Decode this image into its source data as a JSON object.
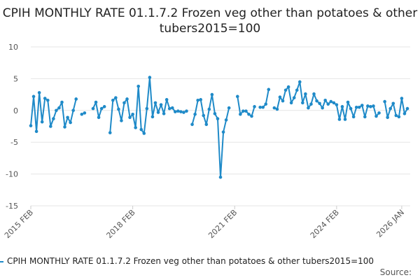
{
  "page": {
    "title": "CPIH MONTHLY RATE 01.1.7.2 Frozen veg other than potatoes & other tubers2015=100",
    "source_label": "Source:"
  },
  "colors": {
    "series": "#1f8ac8",
    "grid": "#e6e6e6",
    "axis_text": "#555555"
  },
  "chart_data": {
    "type": "line",
    "title": "CPIH MONTHLY RATE 01.1.7.2 Frozen veg other than potatoes & other tubers2015=100",
    "xlabel": "",
    "ylabel": "",
    "ylim": [
      -15,
      10
    ],
    "yticks": [
      10,
      5,
      0,
      -5,
      -10,
      -15
    ],
    "xticks": [
      {
        "label": "2015 FEB",
        "index": 0
      },
      {
        "label": "2018 FEB",
        "index": 36
      },
      {
        "label": "2021 FEB",
        "index": 72
      },
      {
        "label": "2024 FEB",
        "index": 108
      },
      {
        "label": "2026 JAN",
        "index": 131
      }
    ],
    "grid": true,
    "legend_position": "bottom",
    "series": [
      {
        "name": "CPIH MONTHLY RATE 01.1.7.2 Frozen veg other than potatoes & other tubers2015=100",
        "start": "2015 FEB",
        "values": [
          -2.4,
          2.2,
          -3.3,
          2.8,
          -1.8,
          1.9,
          1.6,
          -2.5,
          -1.3,
          0.0,
          0.4,
          1.3,
          -2.6,
          -1.1,
          -1.9,
          0.0,
          1.8,
          null,
          -0.6,
          -0.4,
          null,
          null,
          0.3,
          1.3,
          -1.1,
          0.3,
          0.6,
          null,
          -3.5,
          1.6,
          2.0,
          0.2,
          -1.6,
          1.2,
          1.8,
          -1.1,
          -0.6,
          -2.7,
          3.8,
          -3.0,
          -3.6,
          0.3,
          5.2,
          -1.0,
          1.2,
          -0.3,
          0.9,
          -0.5,
          1.7,
          0.3,
          0.4,
          -0.2,
          -0.1,
          -0.2,
          -0.3,
          -0.1,
          null,
          -2.2,
          -0.6,
          1.6,
          1.7,
          -0.8,
          -2.2,
          0.2,
          2.5,
          -0.5,
          -1.3,
          -10.5,
          -3.4,
          -1.5,
          0.4,
          null,
          null,
          2.2,
          -0.6,
          -0.1,
          -0.1,
          -0.6,
          -0.9,
          0.6,
          null,
          0.5,
          0.5,
          1.0,
          3.3,
          null,
          0.4,
          0.2,
          2.1,
          1.5,
          3.2,
          3.7,
          1.2,
          2.0,
          3.2,
          4.5,
          1.2,
          2.6,
          0.4,
          1.0,
          2.6,
          1.5,
          1.1,
          0.4,
          1.6,
          1.0,
          1.4,
          1.2,
          0.9,
          -1.4,
          0.6,
          -1.4,
          1.3,
          0.3,
          -1.0,
          0.5,
          0.5,
          0.8,
          -1.0,
          0.7,
          0.6,
          0.7,
          -0.9,
          -0.4,
          null,
          1.4,
          -1.1,
          0.3,
          1.1,
          -0.8,
          -1.0,
          1.9,
          -0.5,
          0.3
        ]
      }
    ]
  }
}
